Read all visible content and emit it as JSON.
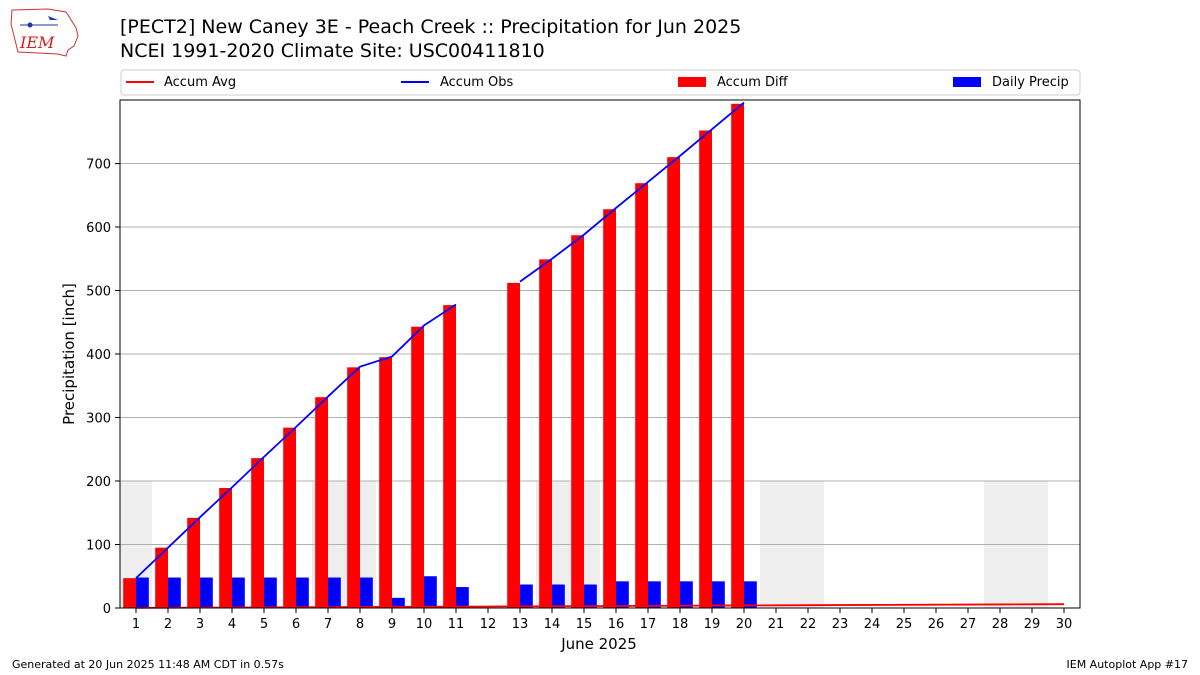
{
  "header": {
    "title_line1": "[PECT2] New Caney 3E - Peach Creek :: Precipitation for Jun 2025",
    "title_line2": "NCEI 1991-2020 Climate Site: USC00411810",
    "logo_text": "IEM"
  },
  "footer": {
    "left": "Generated at 20 Jun 2025 11:48 AM CDT in 0.57s",
    "right": "IEM Autoplot App #17"
  },
  "chart_data": {
    "type": "bar",
    "xlabel": "June 2025",
    "ylabel": "Precipitation [inch]",
    "xlim": [
      0.5,
      30.5
    ],
    "ylim": [
      0,
      800
    ],
    "yticks": [
      0,
      100,
      200,
      300,
      400,
      500,
      600,
      700
    ],
    "grid": "horizontal",
    "legend_position": "top, above plot",
    "categories": [
      "1",
      "2",
      "3",
      "4",
      "5",
      "6",
      "7",
      "8",
      "9",
      "10",
      "11",
      "12",
      "13",
      "14",
      "15",
      "16",
      "17",
      "18",
      "19",
      "20",
      "21",
      "22",
      "23",
      "24",
      "25",
      "26",
      "27",
      "28",
      "29",
      "30"
    ],
    "weekend_shading": {
      "value": 200,
      "color": "#eeeeee",
      "ranges": [
        [
          0.5,
          1.5
        ],
        [
          6.5,
          8.5
        ],
        [
          13.5,
          15.5
        ],
        [
          20.5,
          22.5
        ],
        [
          27.5,
          29.5
        ]
      ]
    },
    "series": [
      {
        "name": "Accum Avg",
        "type": "line",
        "color": "#ff0000",
        "x": [
          1,
          2,
          3,
          4,
          5,
          6,
          7,
          8,
          9,
          10,
          11,
          12,
          13,
          14,
          15,
          16,
          17,
          18,
          19,
          20,
          21,
          22,
          23,
          24,
          25,
          26,
          27,
          28,
          29,
          30
        ],
        "values": [
          0.2,
          0.4,
          0.6,
          0.8,
          1.0,
          1.2,
          1.4,
          1.6,
          1.8,
          2.0,
          2.2,
          2.4,
          2.6,
          2.8,
          3.0,
          3.2,
          3.4,
          3.6,
          3.8,
          4.0,
          4.2,
          4.4,
          4.6,
          4.8,
          5.0,
          5.2,
          5.4,
          5.6,
          5.8,
          6.0
        ]
      },
      {
        "name": "Accum Obs",
        "type": "line",
        "color": "#0000ff",
        "segments": [
          {
            "x": [
              1,
              2,
              3,
              4,
              5,
              6,
              7,
              8,
              9,
              10,
              11
            ],
            "values": [
              47,
              95,
              143,
              190,
              238,
              285,
              333,
              380,
              396,
              445,
              478
            ]
          },
          {
            "x": [
              13,
              14,
              15,
              16,
              17,
              18,
              19,
              20
            ],
            "values": [
              514,
              550,
              588,
              630,
              671,
              712,
              754,
              796
            ]
          }
        ]
      },
      {
        "name": "Accum Diff",
        "type": "bar",
        "color": "#ff0000",
        "x": [
          1,
          2,
          3,
          4,
          5,
          6,
          7,
          8,
          9,
          10,
          11,
          13,
          14,
          15,
          16,
          17,
          18,
          19,
          20
        ],
        "values": [
          47,
          95,
          142,
          189,
          236,
          284,
          332,
          379,
          395,
          443,
          477,
          512,
          549,
          587,
          628,
          669,
          710,
          752,
          794
        ]
      },
      {
        "name": "Daily Precip",
        "type": "bar",
        "color": "#0000ff",
        "x": [
          1,
          2,
          3,
          4,
          5,
          6,
          7,
          8,
          9,
          10,
          11,
          13,
          14,
          15,
          16,
          17,
          18,
          19,
          20
        ],
        "values": [
          48,
          48,
          48,
          48,
          48,
          48,
          48,
          48,
          16,
          50,
          33,
          37,
          37,
          37,
          42,
          42,
          42,
          42,
          42
        ]
      }
    ]
  }
}
